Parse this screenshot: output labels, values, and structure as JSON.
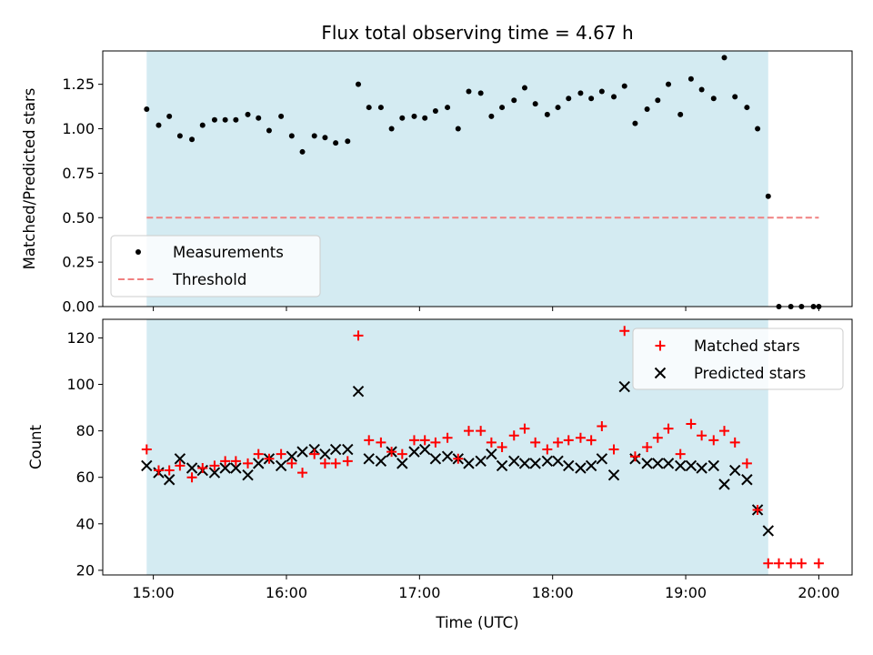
{
  "chart_data": [
    {
      "type": "scatter",
      "title": "Flux total observing time = 4.67 h",
      "ylabel": "Matched/Predicted stars",
      "xlabel": "",
      "ylim": [
        0,
        1.4375
      ],
      "yticks": [
        0.0,
        0.25,
        0.5,
        0.75,
        1.0,
        1.25
      ],
      "ytick_labels": [
        "0.00",
        "0.25",
        "0.50",
        "0.75",
        "1.00",
        "1.25"
      ],
      "shaded_span": [
        14.95,
        19.62
      ],
      "legend_position": "lower-left",
      "series": [
        {
          "name": "Measurements",
          "marker": "dot",
          "color": "#000000",
          "x": [
            14.95,
            15.04,
            15.12,
            15.2,
            15.29,
            15.37,
            15.46,
            15.54,
            15.62,
            15.71,
            15.79,
            15.87,
            15.96,
            16.04,
            16.12,
            16.21,
            16.29,
            16.37,
            16.46,
            16.54,
            16.62,
            16.71,
            16.79,
            16.87,
            16.96,
            17.04,
            17.12,
            17.21,
            17.29,
            17.37,
            17.46,
            17.54,
            17.62,
            17.71,
            17.79,
            17.87,
            17.96,
            18.04,
            18.12,
            18.21,
            18.29,
            18.37,
            18.46,
            18.54,
            18.62,
            18.71,
            18.79,
            18.87,
            18.96,
            19.04,
            19.12,
            19.21,
            19.29,
            19.37,
            19.46,
            19.54,
            19.62,
            19.7,
            19.79,
            19.87,
            19.96,
            20.0
          ],
          "y": [
            1.11,
            1.02,
            1.07,
            0.96,
            0.94,
            1.02,
            1.05,
            1.05,
            1.05,
            1.08,
            1.06,
            0.99,
            1.07,
            0.96,
            0.87,
            0.96,
            0.95,
            0.92,
            0.93,
            1.25,
            1.12,
            1.12,
            1.0,
            1.06,
            1.07,
            1.06,
            1.1,
            1.12,
            1.0,
            1.21,
            1.2,
            1.07,
            1.12,
            1.16,
            1.23,
            1.14,
            1.08,
            1.12,
            1.17,
            1.2,
            1.17,
            1.21,
            1.18,
            1.24,
            1.03,
            1.11,
            1.16,
            1.25,
            1.08,
            1.28,
            1.22,
            1.17,
            1.4,
            1.18,
            1.12,
            1.0,
            0.62,
            0.0,
            0.0,
            0.0,
            0.0,
            0.0
          ]
        },
        {
          "name": "Threshold",
          "style": "dashed",
          "color": "#f08080",
          "x": [
            14.95,
            20.0
          ],
          "y": [
            0.5,
            0.5
          ]
        }
      ]
    },
    {
      "type": "scatter",
      "title": "",
      "ylabel": "Count",
      "xlabel": "Time (UTC)",
      "ylim": [
        18,
        128
      ],
      "yticks": [
        20,
        40,
        60,
        80,
        100,
        120
      ],
      "xlim": [
        14.62,
        20.25
      ],
      "xticks": [
        15,
        16,
        17,
        18,
        19,
        20
      ],
      "xtick_labels": [
        "15:00",
        "16:00",
        "17:00",
        "18:00",
        "19:00",
        "20:00"
      ],
      "shaded_span": [
        14.95,
        19.62
      ],
      "legend_position": "top-right",
      "series": [
        {
          "name": "Matched stars",
          "marker": "plus",
          "color": "#ff0000",
          "x": [
            14.95,
            15.04,
            15.12,
            15.2,
            15.29,
            15.37,
            15.46,
            15.54,
            15.62,
            15.71,
            15.79,
            15.87,
            15.96,
            16.04,
            16.12,
            16.21,
            16.29,
            16.37,
            16.46,
            16.54,
            16.62,
            16.71,
            16.79,
            16.87,
            16.96,
            17.04,
            17.12,
            17.21,
            17.29,
            17.37,
            17.46,
            17.54,
            17.62,
            17.71,
            17.79,
            17.87,
            17.96,
            18.04,
            18.12,
            18.21,
            18.29,
            18.37,
            18.46,
            18.54,
            18.62,
            18.71,
            18.79,
            18.87,
            18.96,
            19.04,
            19.12,
            19.21,
            19.29,
            19.37,
            19.46,
            19.54,
            19.62,
            19.7,
            19.79,
            19.87,
            20.0
          ],
          "y": [
            72,
            63,
            63,
            65,
            60,
            64,
            65,
            67,
            67,
            66,
            70,
            68,
            70,
            66,
            62,
            70,
            66,
            66,
            67,
            121,
            76,
            75,
            71,
            70,
            76,
            76,
            75,
            77,
            68,
            80,
            80,
            75,
            73,
            78,
            81,
            75,
            72,
            75,
            76,
            77,
            76,
            82,
            72,
            123,
            69,
            73,
            77,
            81,
            70,
            83,
            78,
            76,
            80,
            75,
            66,
            46,
            23,
            23,
            23,
            23,
            23
          ]
        },
        {
          "name": "Predicted stars",
          "marker": "x",
          "color": "#000000",
          "x": [
            14.95,
            15.04,
            15.12,
            15.2,
            15.29,
            15.37,
            15.46,
            15.54,
            15.62,
            15.71,
            15.79,
            15.87,
            15.96,
            16.04,
            16.12,
            16.21,
            16.29,
            16.37,
            16.46,
            16.54,
            16.62,
            16.71,
            16.79,
            16.87,
            16.96,
            17.04,
            17.12,
            17.21,
            17.29,
            17.37,
            17.46,
            17.54,
            17.62,
            17.71,
            17.79,
            17.87,
            17.96,
            18.04,
            18.12,
            18.21,
            18.29,
            18.37,
            18.46,
            18.54,
            18.62,
            18.71,
            18.79,
            18.87,
            18.96,
            19.04,
            19.12,
            19.21,
            19.29,
            19.37,
            19.46,
            19.54,
            19.62
          ],
          "y": [
            65,
            62,
            59,
            68,
            64,
            63,
            62,
            64,
            64,
            61,
            66,
            68,
            65,
            69,
            71,
            72,
            70,
            72,
            72,
            97,
            68,
            67,
            71,
            66,
            71,
            72,
            68,
            69,
            68,
            66,
            67,
            70,
            65,
            67,
            66,
            66,
            67,
            67,
            65,
            64,
            65,
            68,
            61,
            99,
            68,
            66,
            66,
            66,
            65,
            65,
            64,
            65,
            57,
            63,
            59,
            46,
            37
          ]
        }
      ]
    }
  ],
  "colors": {
    "shade": "#add8e6",
    "shade_opacity": 0.52
  }
}
